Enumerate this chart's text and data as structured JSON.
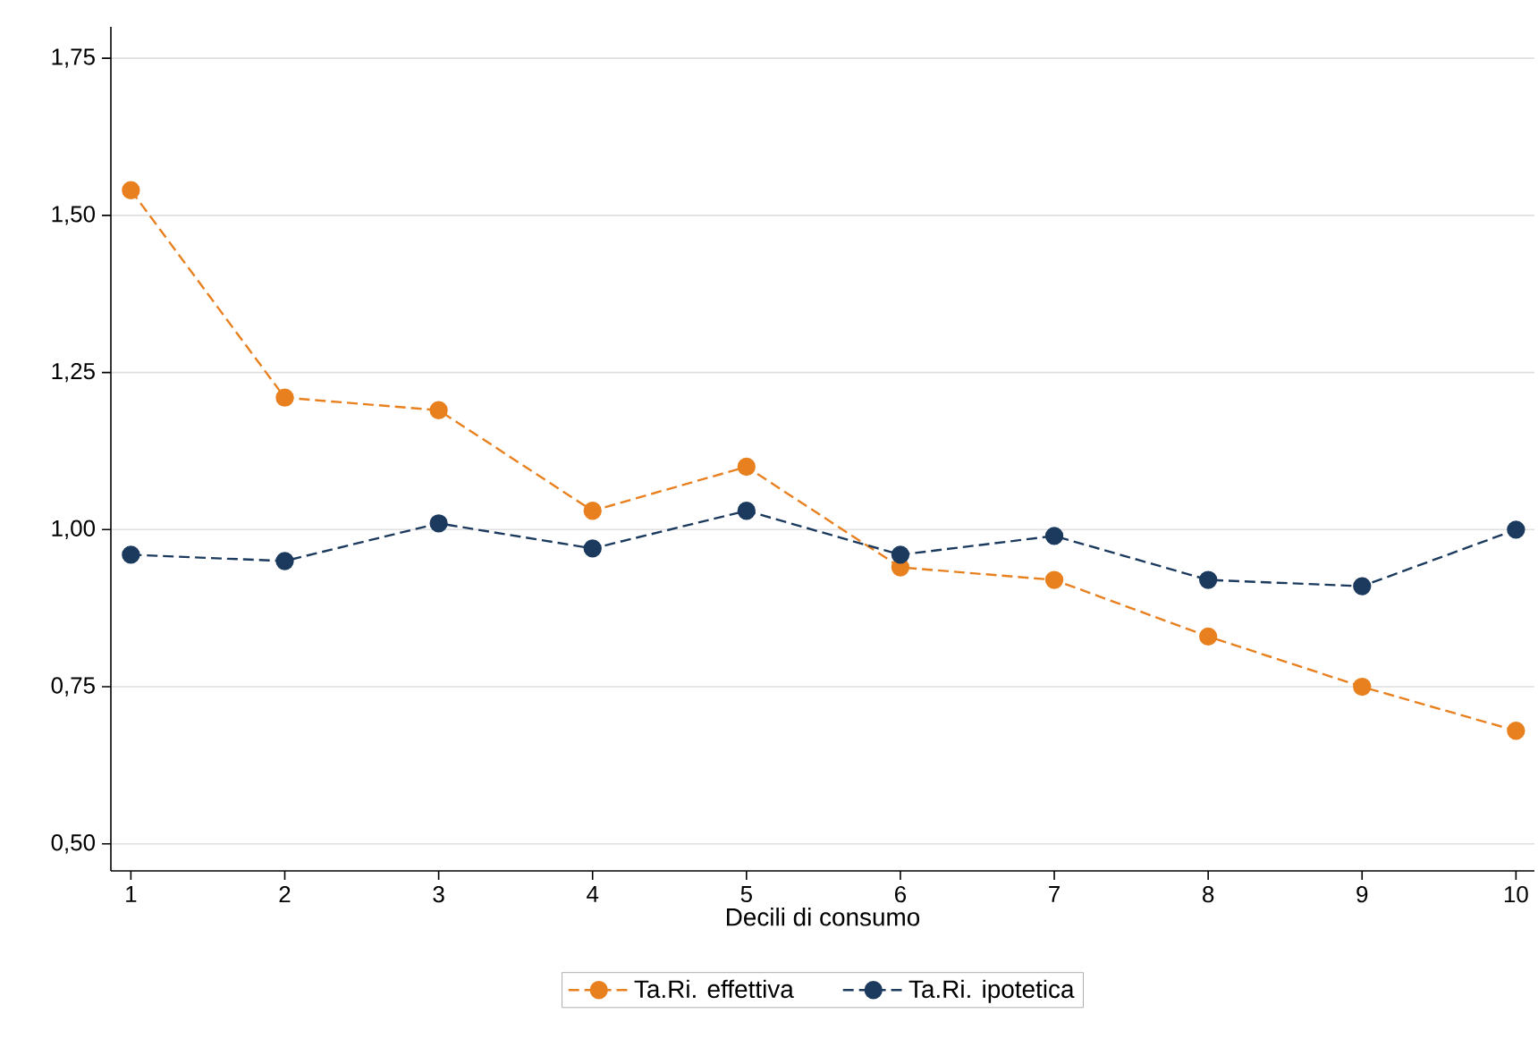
{
  "chart_data": {
    "type": "line",
    "xlabel": "Decili di consumo",
    "x": [
      1,
      2,
      3,
      4,
      5,
      6,
      7,
      8,
      9,
      10
    ],
    "xlim": [
      0.87,
      10.12
    ],
    "xticks": [
      1,
      2,
      3,
      4,
      5,
      6,
      7,
      8,
      9,
      10
    ],
    "ylim": [
      0.457,
      1.8
    ],
    "yticks": [
      {
        "value": 0.5,
        "label": "0,50"
      },
      {
        "value": 0.75,
        "label": "0,75"
      },
      {
        "value": 1.0,
        "label": "1,00"
      },
      {
        "value": 1.25,
        "label": "1,25"
      },
      {
        "value": 1.5,
        "label": "1,50"
      },
      {
        "value": 1.75,
        "label": "1,75"
      }
    ],
    "grid": "y",
    "legend": "bottom",
    "marker": "circle",
    "line_style": "dashed",
    "series": [
      {
        "name": "Ta.Ri. effettiva",
        "color": "#e8801f",
        "values": [
          1.54,
          1.21,
          1.19,
          1.03,
          1.1,
          0.94,
          0.92,
          0.83,
          0.75,
          0.68
        ]
      },
      {
        "name": "Ta.Ri. ipotetica",
        "color": "#1b3a5e",
        "values": [
          0.96,
          0.95,
          1.01,
          0.97,
          1.03,
          0.96,
          0.99,
          0.92,
          0.91,
          1.0
        ]
      }
    ]
  }
}
